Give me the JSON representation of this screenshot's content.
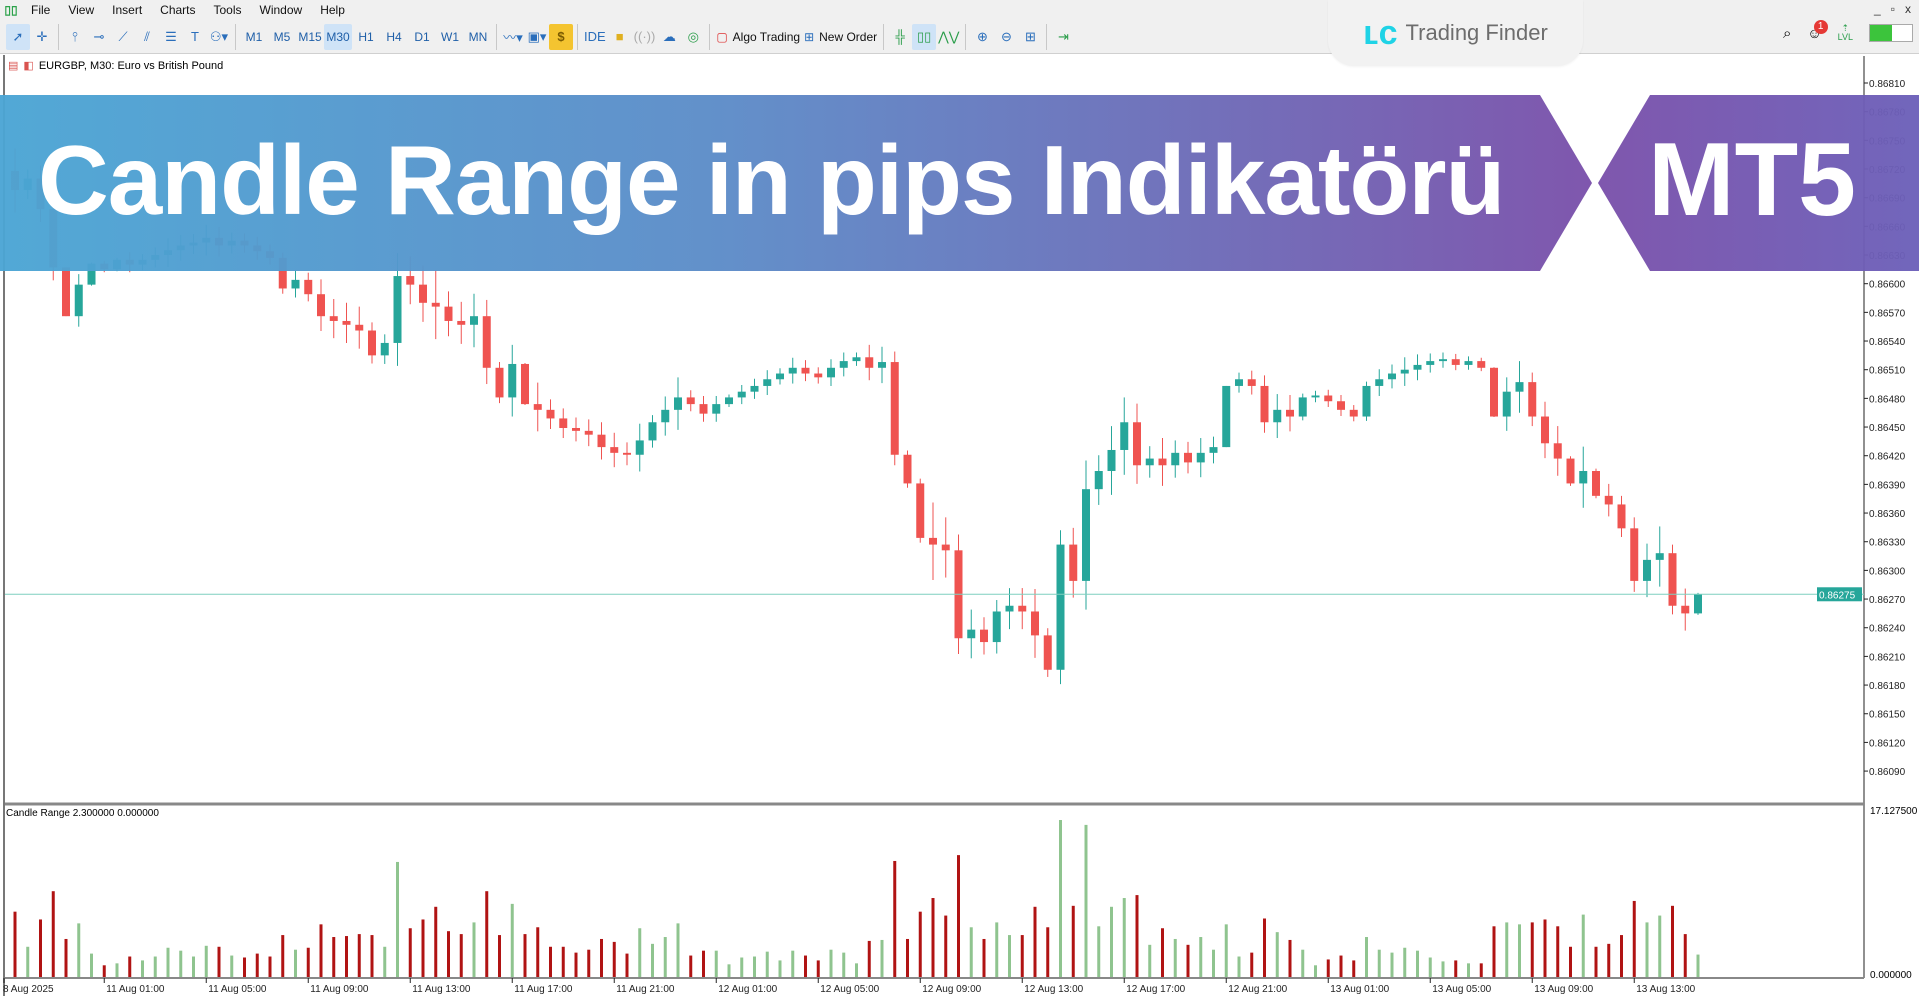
{
  "menu": {
    "items": [
      "File",
      "View",
      "Insert",
      "Charts",
      "Tools",
      "Window",
      "Help"
    ]
  },
  "window_controls": {
    "minimize": "_",
    "restore": "▫",
    "close": "x"
  },
  "toolbar": {
    "timeframes": [
      "M1",
      "M5",
      "M15",
      "M30",
      "H1",
      "H4",
      "D1",
      "W1",
      "MN"
    ],
    "active_timeframe": "M30",
    "ide_label": "IDE",
    "algo_trading_label": "Algo Trading",
    "new_order_label": "New Order",
    "notification_count": "1",
    "lvl_label": "LVL",
    "signal_icon_label": "$"
  },
  "logo": {
    "text": "Trading Finder"
  },
  "chart": {
    "title": "EURGBP, M30:  Euro vs British Pound",
    "banner_title": "Candle Range in pips Indikatörü",
    "banner_badge": "MT5"
  },
  "colors": {
    "bull": "#26a69a",
    "bear": "#ef5350",
    "hist_bull": "#8fc48f",
    "hist_bear": "#b01313",
    "price_line": "#7fcfbf",
    "banner_start": "#4ba5d4",
    "banner_end": "#7a50aa"
  },
  "chart_data": [
    {
      "type": "candlestick",
      "symbol": "EURGBP",
      "timeframe": "M30",
      "ylim": [
        0.86075,
        0.86825
      ],
      "y_ticks": [
        "0.86810",
        "0.86780",
        "0.86750",
        "0.86720",
        "0.86690",
        "0.86660",
        "0.86630",
        "0.86600",
        "0.86570",
        "0.86540",
        "0.86510",
        "0.86480",
        "0.86450",
        "0.86420",
        "0.86390",
        "0.86360",
        "0.86330",
        "0.86300",
        "0.86270",
        "0.86240",
        "0.86210",
        "0.86180",
        "0.86150",
        "0.86120",
        "0.86090"
      ],
      "current_price": "0.86275",
      "x_tick_labels": [
        "8 Aug 2025",
        "11 Aug 01:00",
        "11 Aug 05:00",
        "11 Aug 09:00",
        "11 Aug 13:00",
        "11 Aug 17:00",
        "11 Aug 21:00",
        "12 Aug 01:00",
        "12 Aug 05:00",
        "12 Aug 09:00",
        "12 Aug 13:00",
        "12 Aug 17:00",
        "12 Aug 21:00",
        "13 Aug 01:00",
        "13 Aug 05:00",
        "13 Aug 09:00",
        "13 Aug 13:00"
      ],
      "close": [
        0.86698,
        0.8671,
        0.86678,
        0.86617,
        0.86566,
        0.86599,
        0.86621,
        0.86615,
        0.86625,
        0.8662,
        0.86625,
        0.8663,
        0.86635,
        0.8664,
        0.86643,
        0.86648,
        0.8664,
        0.86645,
        0.8664,
        0.86634,
        0.86627,
        0.86595,
        0.86604,
        0.86589,
        0.86566,
        0.86561,
        0.86557,
        0.86551,
        0.86525,
        0.86538,
        0.86608,
        0.86599,
        0.8658,
        0.86576,
        0.86561,
        0.86557,
        0.86566,
        0.86512,
        0.86481,
        0.86516,
        0.86474,
        0.86468,
        0.86459,
        0.86449,
        0.86446,
        0.86442,
        0.86429,
        0.86423,
        0.86421,
        0.86436,
        0.86455,
        0.86468,
        0.86481,
        0.86474,
        0.86464,
        0.86474,
        0.86481,
        0.86487,
        0.86493,
        0.865,
        0.86506,
        0.86512,
        0.86506,
        0.86502,
        0.86512,
        0.86519,
        0.86523,
        0.86512,
        0.86518,
        0.86421,
        0.86391,
        0.86334,
        0.86327,
        0.86321,
        0.86229,
        0.86238,
        0.86225,
        0.86257,
        0.86263,
        0.86257,
        0.86232,
        0.86196,
        0.86327,
        0.86289,
        0.86385,
        0.86404,
        0.86426,
        0.86455,
        0.8641,
        0.86417,
        0.8641,
        0.86423,
        0.86413,
        0.86423,
        0.86429,
        0.86493,
        0.865,
        0.86493,
        0.86455,
        0.86468,
        0.86461,
        0.86481,
        0.86483,
        0.86477,
        0.86468,
        0.86461,
        0.86493,
        0.865,
        0.86506,
        0.8651,
        0.86515,
        0.86519,
        0.86521,
        0.86515,
        0.86519,
        0.86512,
        0.86461,
        0.86487,
        0.86497,
        0.86461,
        0.86433,
        0.86417,
        0.86391,
        0.86404,
        0.86378,
        0.86369,
        0.86344,
        0.86289,
        0.86311,
        0.86318,
        0.86263,
        0.86255,
        0.86275
      ]
    },
    {
      "type": "bar",
      "title": "Candle Range 2.300000 0.000000",
      "ylim": [
        0,
        17.1275
      ],
      "y_ticks": [
        "17.127500",
        "0.000000"
      ],
      "direction": [
        "R",
        "G",
        "R",
        "R",
        "R",
        "G",
        "G",
        "R",
        "G",
        "R",
        "G",
        "G",
        "G",
        "G",
        "G",
        "G",
        "R",
        "G",
        "R",
        "R",
        "R",
        "R",
        "G",
        "R",
        "R",
        "R",
        "R",
        "R",
        "R",
        "G",
        "G",
        "R",
        "R",
        "R",
        "R",
        "R",
        "G",
        "R",
        "R",
        "G",
        "R",
        "R",
        "R",
        "R",
        "R",
        "R",
        "R",
        "R",
        "R",
        "G",
        "G",
        "G",
        "G",
        "R",
        "R",
        "G",
        "G",
        "G",
        "G",
        "G",
        "G",
        "G",
        "R",
        "R",
        "G",
        "G",
        "G",
        "R",
        "G",
        "R",
        "R",
        "R",
        "R",
        "R",
        "R",
        "G",
        "R",
        "G",
        "G",
        "R",
        "R",
        "R",
        "G",
        "R",
        "G",
        "G",
        "G",
        "G",
        "R",
        "G",
        "R",
        "G",
        "R",
        "G",
        "G",
        "G",
        "G",
        "R",
        "R",
        "G",
        "R",
        "G",
        "G",
        "R",
        "R",
        "R",
        "G",
        "G",
        "G",
        "G",
        "G",
        "G",
        "G",
        "R",
        "G",
        "R",
        "R",
        "G",
        "G",
        "R",
        "R",
        "R",
        "R",
        "G",
        "R",
        "R",
        "R",
        "R",
        "G",
        "G",
        "R",
        "R",
        "G"
      ],
      "values": [
        6.7,
        3.1,
        5.9,
        8.8,
        3.9,
        5.5,
        2.4,
        1.2,
        1.4,
        2.1,
        1.7,
        2.1,
        3.0,
        2.7,
        2.1,
        3.2,
        3.1,
        2.2,
        2.0,
        2.4,
        2.1,
        4.3,
        2.8,
        3.0,
        5.4,
        4.1,
        4.2,
        4.4,
        4.3,
        3.1,
        11.8,
        5.0,
        5.9,
        7.2,
        4.7,
        4.4,
        5.6,
        8.8,
        4.3,
        7.5,
        4.4,
        5.1,
        3.1,
        3.1,
        2.5,
        2.8,
        3.9,
        3.6,
        2.4,
        5.0,
        3.4,
        4.1,
        5.5,
        2.2,
        2.7,
        2.7,
        1.3,
        2.0,
        2.1,
        2.6,
        1.7,
        2.7,
        2.2,
        1.7,
        2.8,
        2.5,
        1.4,
        3.7,
        3.8,
        11.9,
        3.9,
        6.7,
        8.1,
        6.3,
        12.5,
        5.1,
        3.9,
        5.6,
        4.3,
        4.3,
        7.2,
        5.1,
        16.1,
        7.3,
        15.6,
        5.2,
        7.2,
        8.1,
        8.4,
        3.3,
        5.0,
        3.9,
        3.3,
        4.1,
        2.8,
        5.4,
        2.1,
        2.5,
        6.0,
        4.6,
        3.8,
        2.8,
        1.2,
        1.8,
        2.2,
        1.7,
        4.1,
        2.8,
        2.5,
        3.0,
        2.7,
        2.0,
        1.6,
        1.7,
        1.4,
        1.4,
        5.2,
        5.6,
        5.4,
        5.6,
        5.9,
        5.2,
        3.1,
        6.4,
        3.1,
        3.4,
        4.3,
        7.8,
        5.6,
        6.3,
        7.3,
        4.4,
        2.3
      ]
    }
  ]
}
